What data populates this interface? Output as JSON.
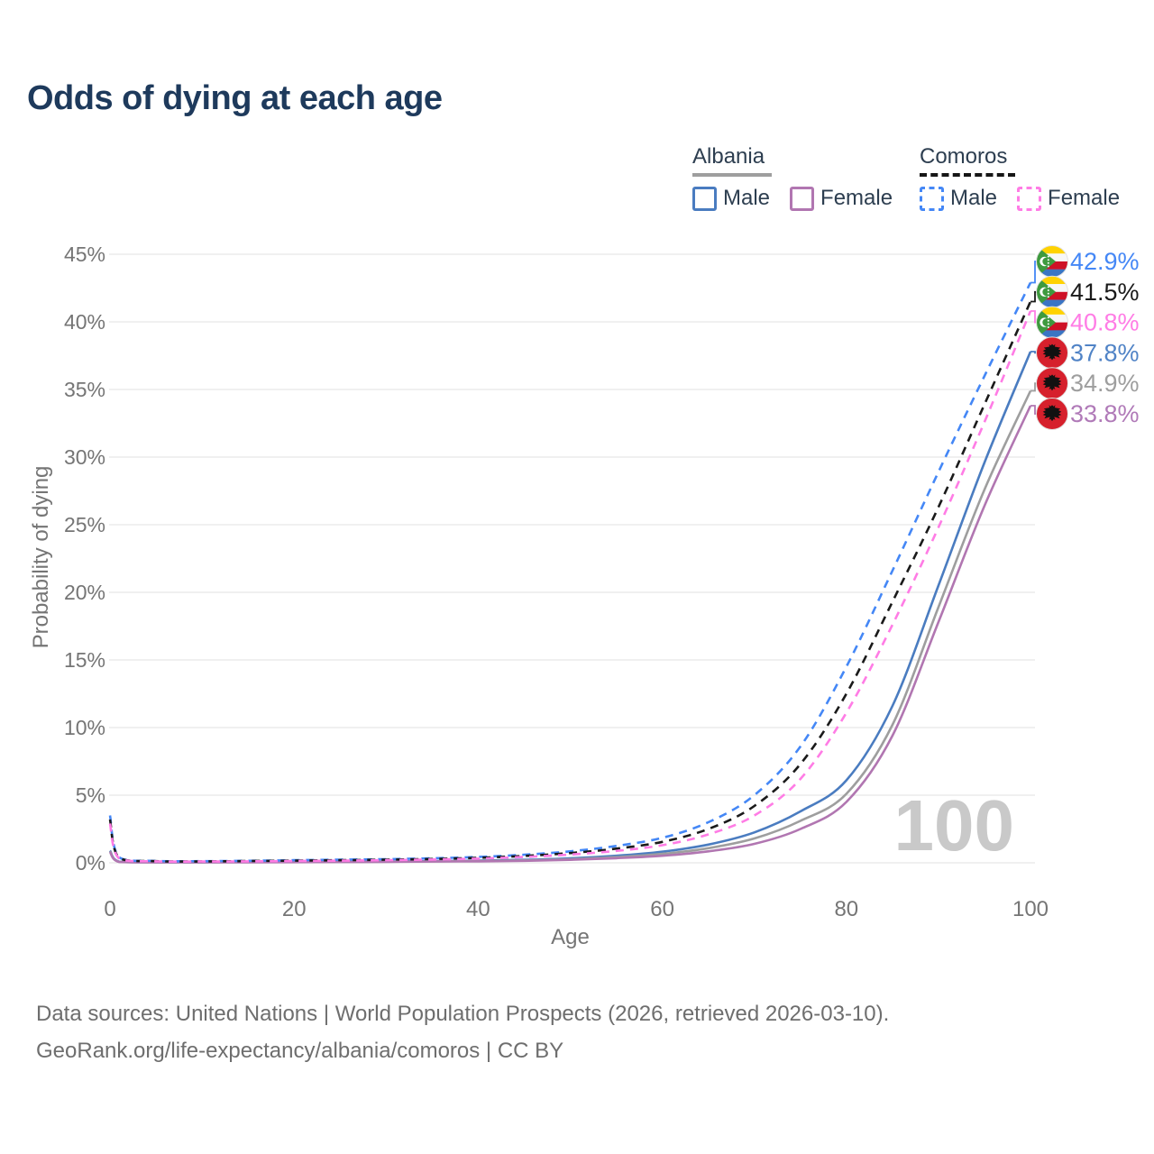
{
  "title": "Odds of dying at each age",
  "legend": {
    "groups": [
      {
        "name": "Albania",
        "underline_color": "#9e9e9e",
        "underline_style": "solid",
        "items": [
          {
            "label": "Male",
            "color": "#4a7cc0",
            "dashed": false
          },
          {
            "label": "Female",
            "color": "#b176b1",
            "dashed": false
          }
        ]
      },
      {
        "name": "Comoros",
        "underline_color": "#161616",
        "underline_style": "dashed",
        "items": [
          {
            "label": "Male",
            "color": "#4487f6",
            "dashed": true
          },
          {
            "label": "Female",
            "color": "#ff7ce5",
            "dashed": true
          }
        ]
      }
    ]
  },
  "footer": {
    "line1": "Data sources: United Nations | World Population Prospects (2026, retrieved 2026-03-10).",
    "line2": "GeoRank.org/life-expectancy/albania/comoros | CC BY"
  },
  "chart_data": {
    "type": "line",
    "title": "Odds of dying at each age",
    "xlabel": "Age",
    "ylabel": "Probability of dying",
    "xlim": [
      0,
      100
    ],
    "ylim": [
      0,
      45
    ],
    "x_ticks": [
      0,
      20,
      40,
      60,
      80,
      100
    ],
    "y_ticks": [
      0,
      5,
      10,
      15,
      20,
      25,
      30,
      35,
      40,
      45
    ],
    "y_tick_suffix": "%",
    "grid": "horizontal",
    "grid_color": "#ececec",
    "axis_text_color": "#757575",
    "watermark": "100",
    "watermark_color": "#c9c9c9",
    "legend_position": "top-right",
    "series": [
      {
        "id": "comoros-male",
        "name": "Comoros — Male",
        "country": "Comoros",
        "sex": "Male",
        "color": "#4487f6",
        "label_color": "#4487f6",
        "dashed": true,
        "flag": "comoros",
        "end_label": "42.9%",
        "points": [
          [
            0,
            3.5
          ],
          [
            1,
            0.4
          ],
          [
            5,
            0.14
          ],
          [
            10,
            0.12
          ],
          [
            15,
            0.15
          ],
          [
            20,
            0.19
          ],
          [
            25,
            0.23
          ],
          [
            30,
            0.27
          ],
          [
            35,
            0.33
          ],
          [
            40,
            0.43
          ],
          [
            45,
            0.6
          ],
          [
            50,
            0.85
          ],
          [
            55,
            1.25
          ],
          [
            60,
            1.85
          ],
          [
            65,
            3.0
          ],
          [
            70,
            5.0
          ],
          [
            75,
            8.6
          ],
          [
            80,
            14.5
          ],
          [
            85,
            21.6
          ],
          [
            90,
            28.9
          ],
          [
            95,
            36.0
          ],
          [
            100,
            42.9
          ]
        ]
      },
      {
        "id": "comoros-both",
        "name": "Comoros — Both sexes",
        "country": "Comoros",
        "sex": "Both",
        "color": "#1a1a1a",
        "label_color": "#1a1a1a",
        "dashed": true,
        "flag": "comoros",
        "end_label": "41.5%",
        "points": [
          [
            0,
            3.2
          ],
          [
            1,
            0.36
          ],
          [
            5,
            0.12
          ],
          [
            10,
            0.1
          ],
          [
            15,
            0.13
          ],
          [
            20,
            0.16
          ],
          [
            25,
            0.19
          ],
          [
            30,
            0.23
          ],
          [
            35,
            0.28
          ],
          [
            40,
            0.37
          ],
          [
            45,
            0.51
          ],
          [
            50,
            0.72
          ],
          [
            55,
            1.05
          ],
          [
            60,
            1.55
          ],
          [
            65,
            2.5
          ],
          [
            70,
            4.2
          ],
          [
            75,
            7.3
          ],
          [
            80,
            12.5
          ],
          [
            85,
            19.3
          ],
          [
            90,
            26.3
          ],
          [
            95,
            33.9
          ],
          [
            100,
            41.5
          ]
        ]
      },
      {
        "id": "comoros-female",
        "name": "Comoros — Female",
        "country": "Comoros",
        "sex": "Female",
        "color": "#ff7ce5",
        "label_color": "#ff7ce5",
        "dashed": true,
        "flag": "comoros",
        "end_label": "40.8%",
        "points": [
          [
            0,
            2.9
          ],
          [
            1,
            0.32
          ],
          [
            5,
            0.11
          ],
          [
            10,
            0.09
          ],
          [
            15,
            0.11
          ],
          [
            20,
            0.13
          ],
          [
            25,
            0.16
          ],
          [
            30,
            0.19
          ],
          [
            35,
            0.24
          ],
          [
            40,
            0.31
          ],
          [
            45,
            0.43
          ],
          [
            50,
            0.61
          ],
          [
            55,
            0.88
          ],
          [
            60,
            1.3
          ],
          [
            65,
            2.1
          ],
          [
            70,
            3.5
          ],
          [
            75,
            6.2
          ],
          [
            80,
            11.1
          ],
          [
            85,
            17.6
          ],
          [
            90,
            24.8
          ],
          [
            95,
            32.6
          ],
          [
            100,
            40.8
          ]
        ]
      },
      {
        "id": "albania-male",
        "name": "Albania — Male",
        "country": "Albania",
        "sex": "Male",
        "color": "#4a7cc0",
        "label_color": "#5083c6",
        "dashed": false,
        "flag": "albania",
        "end_label": "37.8%",
        "points": [
          [
            0,
            0.9
          ],
          [
            1,
            0.08
          ],
          [
            5,
            0.04
          ],
          [
            10,
            0.04
          ],
          [
            15,
            0.06
          ],
          [
            20,
            0.08
          ],
          [
            25,
            0.09
          ],
          [
            30,
            0.1
          ],
          [
            35,
            0.12
          ],
          [
            40,
            0.16
          ],
          [
            45,
            0.22
          ],
          [
            50,
            0.33
          ],
          [
            55,
            0.52
          ],
          [
            60,
            0.82
          ],
          [
            65,
            1.35
          ],
          [
            70,
            2.25
          ],
          [
            75,
            3.8
          ],
          [
            80,
            6.1
          ],
          [
            85,
            11.6
          ],
          [
            90,
            20.5
          ],
          [
            95,
            29.6
          ],
          [
            100,
            37.8
          ]
        ]
      },
      {
        "id": "albania-both",
        "name": "Albania — Both sexes",
        "country": "Albania",
        "sex": "Both",
        "color": "#9e9e9e",
        "label_color": "#9e9e9e",
        "dashed": false,
        "flag": "albania",
        "end_label": "34.9%",
        "points": [
          [
            0,
            0.85
          ],
          [
            1,
            0.07
          ],
          [
            5,
            0.035
          ],
          [
            10,
            0.035
          ],
          [
            15,
            0.05
          ],
          [
            20,
            0.06
          ],
          [
            25,
            0.07
          ],
          [
            30,
            0.08
          ],
          [
            35,
            0.1
          ],
          [
            40,
            0.13
          ],
          [
            45,
            0.18
          ],
          [
            50,
            0.27
          ],
          [
            55,
            0.42
          ],
          [
            60,
            0.66
          ],
          [
            65,
            1.08
          ],
          [
            70,
            1.8
          ],
          [
            75,
            3.1
          ],
          [
            80,
            5.1
          ],
          [
            85,
            10.2
          ],
          [
            90,
            18.9
          ],
          [
            95,
            27.6
          ],
          [
            100,
            34.9
          ]
        ]
      },
      {
        "id": "albania-female",
        "name": "Albania — Female",
        "country": "Albania",
        "sex": "Female",
        "color": "#b176b1",
        "label_color": "#b07ab8",
        "dashed": false,
        "flag": "albania",
        "end_label": "33.8%",
        "points": [
          [
            0,
            0.8
          ],
          [
            1,
            0.06
          ],
          [
            5,
            0.03
          ],
          [
            10,
            0.03
          ],
          [
            15,
            0.04
          ],
          [
            20,
            0.05
          ],
          [
            25,
            0.06
          ],
          [
            30,
            0.07
          ],
          [
            35,
            0.09
          ],
          [
            40,
            0.11
          ],
          [
            45,
            0.15
          ],
          [
            50,
            0.22
          ],
          [
            55,
            0.34
          ],
          [
            60,
            0.52
          ],
          [
            65,
            0.85
          ],
          [
            70,
            1.4
          ],
          [
            75,
            2.5
          ],
          [
            80,
            4.5
          ],
          [
            85,
            9.4
          ],
          [
            90,
            17.8
          ],
          [
            95,
            26.4
          ],
          [
            100,
            33.8
          ]
        ]
      }
    ],
    "flag_colors": {
      "comoros_yellow": "#FFD201",
      "comoros_white": "#F7F7F7",
      "comoros_red": "#CE1126",
      "comoros_blue": "#3A75C4",
      "comoros_green": "#3E9A3E",
      "albania_red": "#D6202C",
      "eagle_black": "#111111"
    }
  }
}
